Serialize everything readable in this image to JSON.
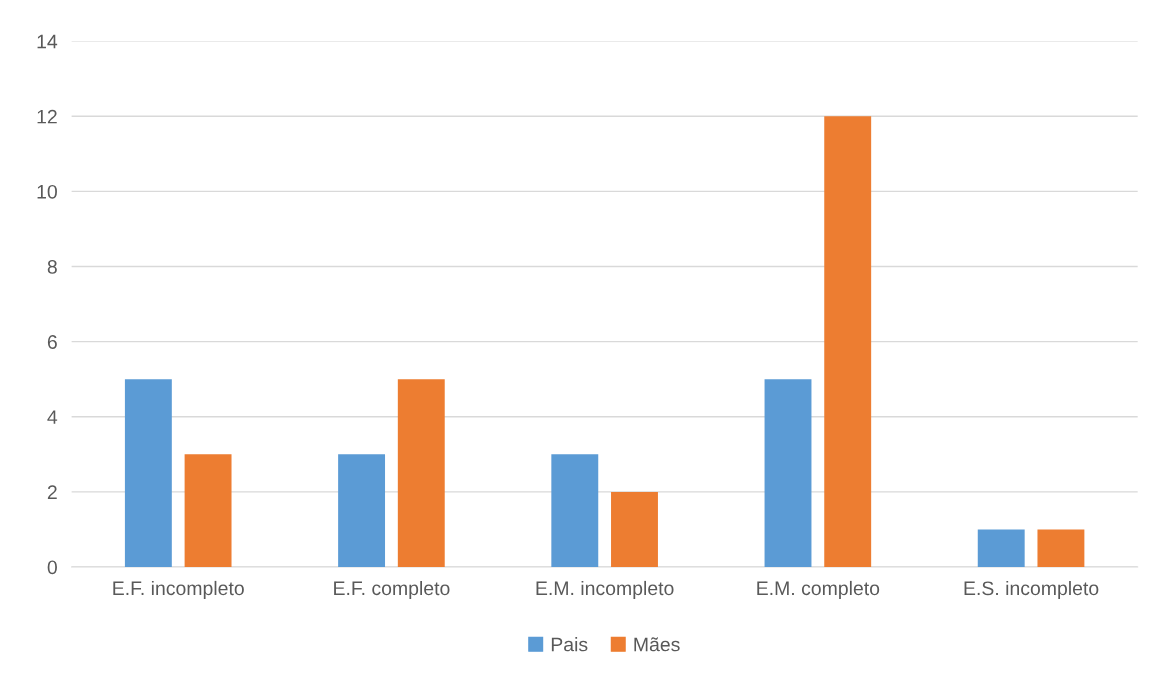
{
  "chart_data": {
    "type": "bar",
    "categories": [
      "E.F. incompleto",
      "E.F. completo",
      "E.M. incompleto",
      "E.M. completo",
      "E.S. incompleto"
    ],
    "series": [
      {
        "name": "Pais",
        "color": "#5b9bd5",
        "values": [
          5,
          3,
          3,
          5,
          1
        ]
      },
      {
        "name": "Mães",
        "color": "#ed7d31",
        "values": [
          3,
          5,
          2,
          12,
          1
        ]
      }
    ],
    "ylim": [
      0,
      14
    ],
    "yticks": [
      0,
      2,
      4,
      6,
      8,
      10,
      12,
      14
    ],
    "grid": "y",
    "legend": "bottom"
  }
}
